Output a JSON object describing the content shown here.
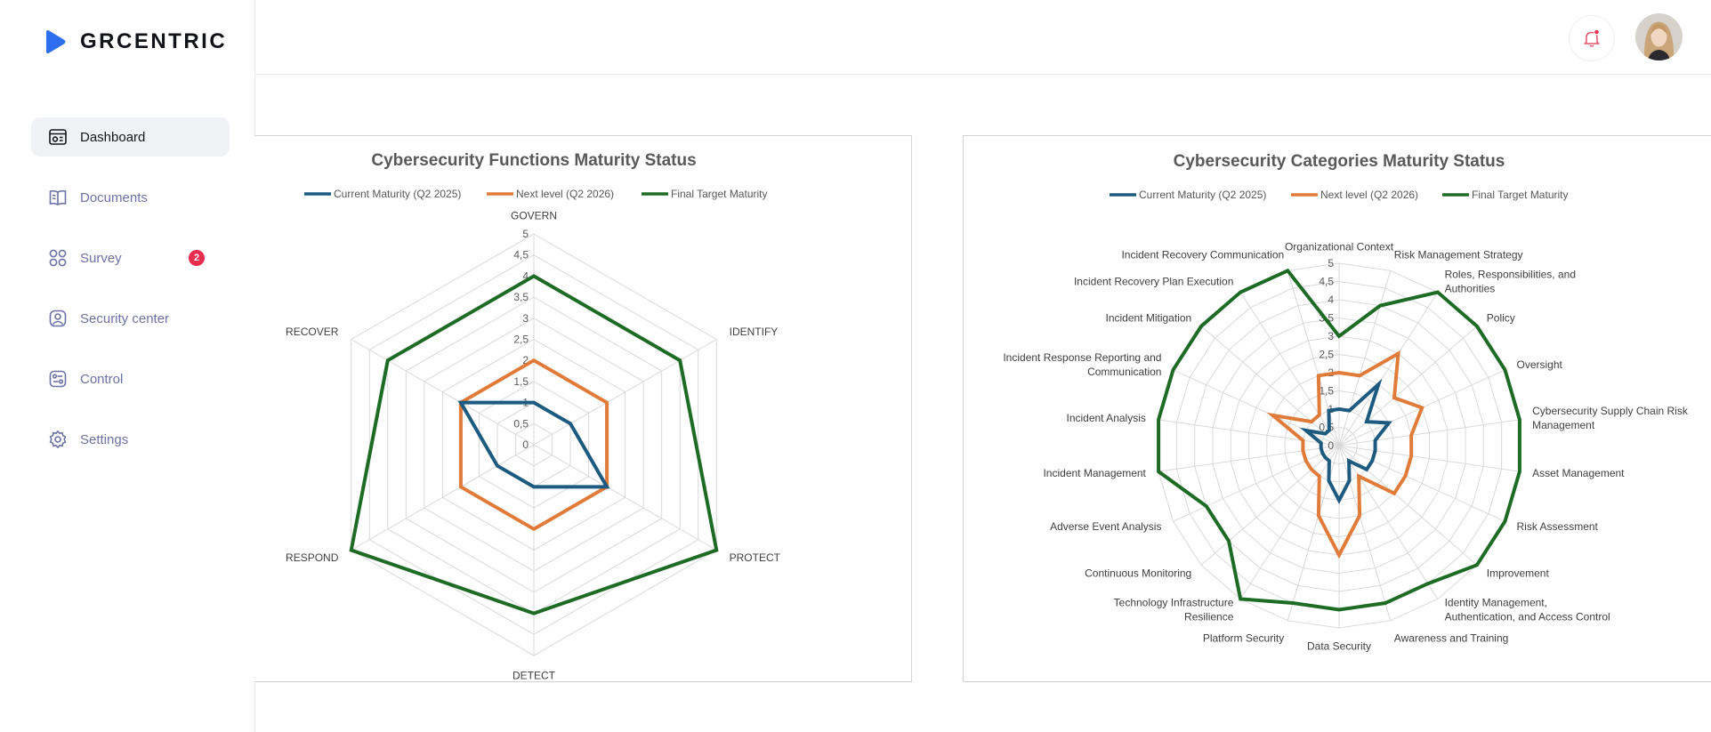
{
  "brand": {
    "name": "GRCENTRIC",
    "logo_icon": "play-triangle-logo",
    "accent": "#2d6ff0"
  },
  "sidebar": {
    "items": [
      {
        "label": "Dashboard",
        "icon": "dashboard-icon",
        "active": true
      },
      {
        "label": "Documents",
        "icon": "book-icon"
      },
      {
        "label": "Survey",
        "icon": "grid-icon",
        "badge": "2"
      },
      {
        "label": "Security center",
        "icon": "user-shield-icon"
      },
      {
        "label": "Control",
        "icon": "control-icon"
      },
      {
        "label": "Settings",
        "icon": "gear-icon"
      }
    ]
  },
  "header": {
    "notification_icon": "bell-icon",
    "notification_dot_color": "#ec2c4d",
    "avatar": "user-avatar"
  },
  "colors": {
    "current": "#1d5a80",
    "next": "#e07b39",
    "final": "#1e6b26",
    "grid": "#d9d9d9",
    "title": "#595959"
  },
  "charts": [
    {
      "title": "Cybersecurity Functions Maturity Status",
      "legend": [
        "Current Maturity (Q2 2025)",
        "Next level (Q2 2026)",
        "Final Target Maturity"
      ],
      "tick_labels": [
        "0",
        "0,5",
        "1",
        "1,5",
        "2",
        "2,5",
        "3",
        "3,5",
        "4",
        "4,5",
        "5"
      ],
      "categories": [
        "GOVERN",
        "IDENTIFY",
        "PROTECT",
        "DETECT",
        "RESPOND",
        "RECOVER"
      ]
    },
    {
      "title": "Cybersecurity Categories Maturity Status",
      "legend": [
        "Current Maturity (Q2 2025)",
        "Next level (Q2 2026)",
        "Final Target Maturity"
      ],
      "tick_labels": [
        "0",
        "0,5",
        "1",
        "1,5",
        "2",
        "2,5",
        "3",
        "3,5",
        "4",
        "4,5",
        "5"
      ],
      "categories": [
        "Organizational Context",
        "Risk Management Strategy",
        "Roles, Responsibilities, and Authorities",
        "Policy",
        "Oversight",
        "Cybersecurity Supply Chain Risk Management",
        "Asset Management",
        "Risk Assessment",
        "Improvement",
        "Identity Management, Authentication, and Access Control",
        "Awareness and Training",
        "Data Security",
        "Platform Security",
        "Technology Infrastructure Resilience",
        "Continuous Monitoring",
        "Adverse Event Analysis",
        "Incident Management",
        "Incident Analysis",
        "Incident Response Reporting and Communication",
        "Incident Mitigation",
        "Incident Recovery Plan Execution",
        "Incident Recovery Communication"
      ]
    }
  ],
  "chart_data": [
    {
      "type": "radar",
      "title": "Cybersecurity Functions Maturity Status",
      "categories": [
        "GOVERN",
        "IDENTIFY",
        "PROTECT",
        "DETECT",
        "RESPOND",
        "RECOVER"
      ],
      "rlim": [
        0,
        5
      ],
      "ticks": [
        0,
        0.5,
        1,
        1.5,
        2,
        2.5,
        3,
        3.5,
        4,
        4.5,
        5
      ],
      "grid": true,
      "legend": "top",
      "series": [
        {
          "name": "Current Maturity (Q2 2025)",
          "values": [
            1,
            1,
            2,
            1,
            1,
            2
          ]
        },
        {
          "name": "Next level (Q2 2026)",
          "values": [
            2,
            2,
            2,
            2,
            2,
            2
          ]
        },
        {
          "name": "Final Target Maturity",
          "values": [
            4,
            4,
            5,
            4,
            5,
            4
          ]
        }
      ]
    },
    {
      "type": "radar",
      "title": "Cybersecurity Categories Maturity Status",
      "categories": [
        "Organizational Context",
        "Risk Management Strategy",
        "Roles, Responsibilities, and Authorities",
        "Policy",
        "Oversight",
        "Cybersecurity Supply Chain Risk Management",
        "Asset Management",
        "Risk Assessment",
        "Improvement",
        "Identity Management, Authentication, and Access Control",
        "Awareness and Training",
        "Data Security",
        "Platform Security",
        "Technology Infrastructure Resilience",
        "Continuous Monitoring",
        "Adverse Event Analysis",
        "Incident Management",
        "Incident Analysis",
        "Incident Response Reporting and Communication",
        "Incident Mitigation",
        "Incident Recovery Plan Execution",
        "Incident Recovery Communication"
      ],
      "rlim": [
        0,
        5
      ],
      "ticks": [
        0,
        0.5,
        1,
        1.5,
        2,
        2.5,
        3,
        3.5,
        4,
        4.5,
        5
      ],
      "grid": true,
      "legend": "top",
      "series": [
        {
          "name": "Current Maturity (Q2 2025)",
          "values": [
            1,
            1,
            2,
            1,
            1.5,
            1,
            1,
            1,
            1,
            0.5,
            1,
            1.5,
            1,
            0.5,
            0.5,
            0.5,
            0.5,
            0.5,
            1,
            0.5,
            0.5,
            1
          ]
        },
        {
          "name": "Next level (Q2 2026)",
          "values": [
            2,
            2,
            3,
            2,
            2.5,
            2,
            2,
            2,
            2,
            1,
            2,
            3,
            2,
            1,
            1,
            1,
            1,
            1,
            2,
            1,
            1,
            2
          ]
        },
        {
          "name": "Final Target Maturity",
          "values": [
            3,
            4,
            5,
            5,
            5,
            5,
            5,
            5,
            5,
            4.5,
            4.5,
            4.5,
            4.5,
            5,
            4,
            4,
            5,
            5,
            5,
            5,
            5,
            5
          ]
        }
      ]
    }
  ]
}
